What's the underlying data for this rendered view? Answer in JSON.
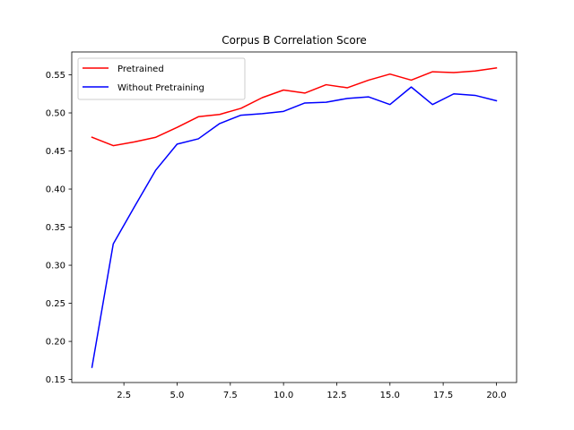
{
  "chart_data": {
    "type": "line",
    "title": "Corpus B Correlation Score",
    "xlabel": "",
    "ylabel": "",
    "xlim": [
      0.05,
      20.95
    ],
    "ylim": [
      0.146,
      0.58
    ],
    "xticks": [
      2.5,
      5.0,
      7.5,
      10.0,
      12.5,
      15.0,
      17.5,
      20.0
    ],
    "xtick_labels": [
      "2.5",
      "5.0",
      "7.5",
      "10.0",
      "12.5",
      "15.0",
      "17.5",
      "20.0"
    ],
    "yticks": [
      0.15,
      0.2,
      0.25,
      0.3,
      0.35,
      0.4,
      0.45,
      0.5,
      0.55
    ],
    "ytick_labels": [
      "0.15",
      "0.20",
      "0.25",
      "0.30",
      "0.35",
      "0.40",
      "0.45",
      "0.50",
      "0.55"
    ],
    "grid": false,
    "legend_position": "top-left",
    "x": [
      1,
      2,
      3,
      4,
      5,
      6,
      7,
      8,
      9,
      10,
      11,
      12,
      13,
      14,
      15,
      16,
      17,
      18,
      19,
      20
    ],
    "series": [
      {
        "name": "Pretrained",
        "color": "#ff0000",
        "values": [
          0.468,
          0.457,
          0.462,
          0.468,
          0.481,
          0.495,
          0.498,
          0.506,
          0.52,
          0.53,
          0.526,
          0.537,
          0.533,
          0.543,
          0.551,
          0.543,
          0.554,
          0.553,
          0.555,
          0.559
        ]
      },
      {
        "name": "Without Pretraining",
        "color": "#0000ff",
        "values": [
          0.166,
          0.328,
          0.377,
          0.425,
          0.459,
          0.466,
          0.486,
          0.497,
          0.499,
          0.502,
          0.513,
          0.514,
          0.519,
          0.521,
          0.511,
          0.534,
          0.511,
          0.525,
          0.523,
          0.516
        ]
      }
    ]
  }
}
